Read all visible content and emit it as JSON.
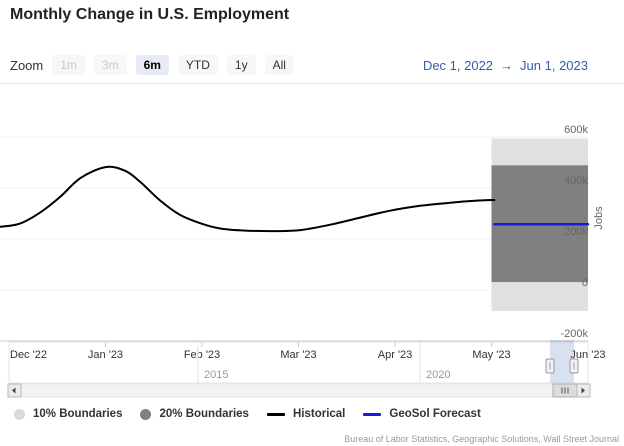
{
  "title": "Monthly Change in U.S. Employment",
  "range_selector": {
    "zoom_label": "Zoom",
    "buttons": [
      {
        "label": "1m",
        "state": "disabled"
      },
      {
        "label": "3m",
        "state": "disabled"
      },
      {
        "label": "6m",
        "state": "selected"
      },
      {
        "label": "YTD",
        "state": "normal"
      },
      {
        "label": "1y",
        "state": "normal"
      },
      {
        "label": "All",
        "state": "normal"
      }
    ],
    "from_date": "Dec 1, 2022",
    "separator": "→",
    "to_date": "Jun 1, 2023"
  },
  "chart_data": {
    "type": "line",
    "title": "Monthly Change in U.S. Employment",
    "ylabel": "Jobs",
    "x_axis": {
      "unit": "months since Dec 1, 2022",
      "range_dates": [
        "Dec 1, 2022",
        "Jun 1, 2023"
      ],
      "range": [
        0,
        6
      ],
      "tick_labels": [
        "Dec '22",
        "Jan '23",
        "Feb '23",
        "Mar '23",
        "Apr '23",
        "May '23",
        "Jun '23"
      ]
    },
    "y_axis": {
      "unit": "jobs",
      "range": [
        -200000,
        770000
      ],
      "grid": true,
      "ticks": [
        {
          "label": "600k",
          "value": 600000
        },
        {
          "label": "400k",
          "value": 400000
        },
        {
          "label": "200k",
          "value": 200000
        },
        {
          "label": "0",
          "value": 0
        },
        {
          "label": "-200k",
          "value": -200000
        }
      ]
    },
    "series": [
      {
        "name": "10% Boundaries",
        "type": "band",
        "color": "#e0e0e0",
        "x_range": [
          5,
          6
        ],
        "y_range": [
          -82000,
          594000
        ]
      },
      {
        "name": "20% Boundaries",
        "type": "band",
        "color": "#808080",
        "x_range": [
          5,
          6
        ],
        "y_range": [
          31000,
          489000
        ]
      },
      {
        "name": "Historical",
        "type": "line",
        "color": "#000000",
        "points": [
          [
            -0.09,
            248000
          ],
          [
            0.11,
            260000
          ],
          [
            0.32,
            303000
          ],
          [
            0.53,
            365000
          ],
          [
            0.74,
            439000
          ],
          [
            1.0,
            482000
          ],
          [
            1.2,
            468000
          ],
          [
            1.36,
            424000
          ],
          [
            1.56,
            353000
          ],
          [
            1.77,
            295000
          ],
          [
            1.98,
            262000
          ],
          [
            2.19,
            241000
          ],
          [
            2.45,
            233000
          ],
          [
            2.76,
            231000
          ],
          [
            3.02,
            235000
          ],
          [
            3.33,
            256000
          ],
          [
            3.64,
            284000
          ],
          [
            3.95,
            311000
          ],
          [
            4.26,
            330000
          ],
          [
            4.57,
            342000
          ],
          [
            4.83,
            350000
          ],
          [
            5.03,
            353000
          ]
        ]
      },
      {
        "name": "GeoSol Forecast",
        "type": "line",
        "color": "#1a1ade",
        "points": [
          [
            5.03,
            258000
          ],
          [
            6,
            258000
          ]
        ]
      }
    ],
    "navigator": {
      "year_labels": [
        "2015",
        "2020"
      ],
      "selected_range": [
        "Dec 1, 2022",
        "Jun 1, 2023"
      ]
    },
    "legend_position": "bottom-left"
  },
  "legend": {
    "items": [
      {
        "label": "10% Boundaries",
        "color": "#d9d9d9",
        "type": "circle"
      },
      {
        "label": "20% Boundaries",
        "color": "#808080",
        "type": "circle"
      },
      {
        "label": "Historical",
        "color": "#000000",
        "type": "line"
      },
      {
        "label": "GeoSol Forecast",
        "color": "#1a1ade",
        "type": "line"
      }
    ]
  },
  "credits": "Bureau of Labor Statistics, Geographic Solutions, Wall Street Journal",
  "colors": {
    "accent_blue": "#335cad",
    "selected_button_bg": "#e6ebf5",
    "button_bg": "#f7f7f7",
    "gridline": "#f0f0f0",
    "axis": "#cccccc",
    "navigator_mask": "rgba(102,133,194,0.25)"
  }
}
